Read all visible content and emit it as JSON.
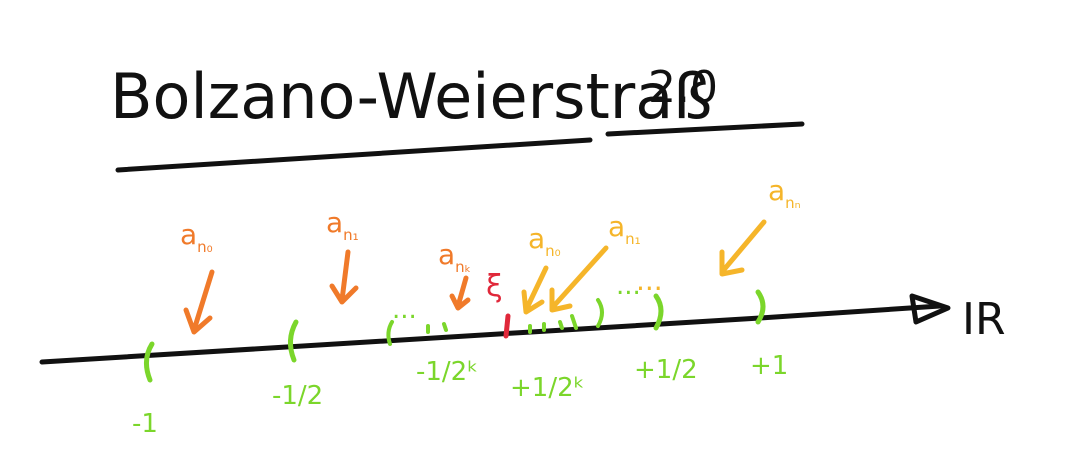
{
  "title": "Bolzano-Weierstraß",
  "version": "2.0",
  "axis_label": "IR",
  "colors": {
    "ink": "#111111",
    "orange": "#f07a2a",
    "yellow": "#f5b52a",
    "green": "#7bd62b",
    "red": "#e0283a"
  },
  "sequence_labels_orange": [
    {
      "base": "a",
      "sub": "n₀"
    },
    {
      "base": "a",
      "sub": "n₁"
    },
    {
      "base": "a",
      "sub": "nₖ"
    }
  ],
  "sequence_labels_yellow": [
    {
      "base": "a",
      "sub": "n₀"
    },
    {
      "base": "a",
      "sub": "n₁"
    },
    {
      "base": "a",
      "sub": "nₙ"
    }
  ],
  "limit_symbol": "ξ",
  "interval_labels": [
    "-1",
    "-1/2",
    "-1/2ᵏ",
    "+1/2ᵏ",
    "+1/2",
    "+1"
  ],
  "ellipsis": "..."
}
